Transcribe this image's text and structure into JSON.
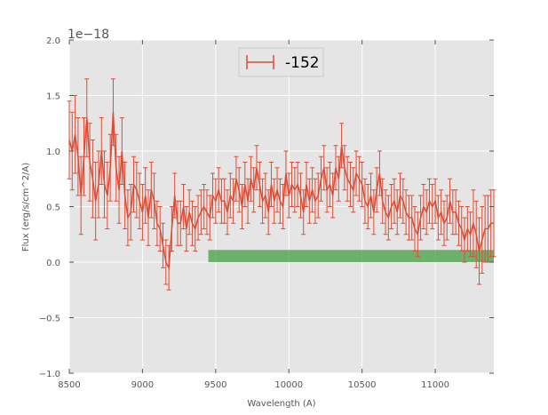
{
  "chart_data": {
    "type": "line",
    "title": "",
    "xlabel": "Wavelength (A)",
    "ylabel": "Flux (erg/s/cm^2/A)",
    "y_offset_label": "1e−18",
    "xlim": [
      8500,
      11400
    ],
    "ylim": [
      -1.0,
      2.0
    ],
    "x_ticks": [
      8500,
      9000,
      9500,
      10000,
      10500,
      11000
    ],
    "x_tick_labels": [
      "8500",
      "9000",
      "9500",
      "10000",
      "10500",
      "11000"
    ],
    "y_ticks": [
      -1.0,
      -0.5,
      0.0,
      0.5,
      1.0,
      1.5,
      2.0
    ],
    "y_tick_labels": [
      "−1.0",
      "−0.5",
      "0.0",
      "0.5",
      "1.0",
      "1.5",
      "2.0"
    ],
    "grid": true,
    "legend_placement": "top-center",
    "colors": {
      "background": "#e5e5e5",
      "grid": "#ffffff",
      "series": "#e24a33",
      "band": "#4fa24f"
    },
    "series": [
      {
        "name": "-152",
        "x": [
          8500,
          8520,
          8540,
          8560,
          8580,
          8600,
          8620,
          8640,
          8660,
          8680,
          8700,
          8720,
          8740,
          8760,
          8780,
          8800,
          8820,
          8840,
          8860,
          8880,
          8900,
          8920,
          8940,
          8960,
          8980,
          9000,
          9020,
          9040,
          9060,
          9080,
          9100,
          9120,
          9140,
          9160,
          9180,
          9200,
          9220,
          9240,
          9260,
          9280,
          9300,
          9320,
          9340,
          9360,
          9380,
          9400,
          9420,
          9440,
          9460,
          9480,
          9500,
          9520,
          9540,
          9560,
          9580,
          9600,
          9620,
          9640,
          9660,
          9680,
          9700,
          9720,
          9740,
          9760,
          9780,
          9800,
          9820,
          9840,
          9860,
          9880,
          9900,
          9920,
          9940,
          9960,
          9980,
          10000,
          10020,
          10040,
          10060,
          10080,
          10100,
          10120,
          10140,
          10160,
          10180,
          10200,
          10220,
          10240,
          10260,
          10280,
          10300,
          10320,
          10340,
          10360,
          10380,
          10400,
          10420,
          10440,
          10460,
          10480,
          10500,
          10520,
          10540,
          10560,
          10580,
          10600,
          10620,
          10640,
          10660,
          10680,
          10700,
          10720,
          10740,
          10760,
          10780,
          10800,
          10820,
          10840,
          10860,
          10880,
          10900,
          10920,
          10940,
          10960,
          10980,
          11000,
          11020,
          11040,
          11060,
          11080,
          11100,
          11120,
          11140,
          11160,
          11180,
          11200,
          11220,
          11240,
          11260,
          11280,
          11300,
          11320,
          11340,
          11360,
          11380,
          11400
        ],
        "y": [
          1.1,
          1.0,
          1.15,
          0.95,
          0.6,
          0.95,
          1.3,
          0.9,
          0.75,
          0.55,
          0.7,
          1.0,
          0.7,
          0.6,
          0.85,
          1.35,
          0.85,
          0.65,
          1.0,
          0.6,
          0.4,
          0.45,
          0.7,
          0.65,
          0.55,
          0.45,
          0.6,
          0.4,
          0.65,
          0.55,
          0.35,
          0.3,
          0.15,
          0.0,
          -0.05,
          0.3,
          0.6,
          0.35,
          0.35,
          0.5,
          0.3,
          0.45,
          0.35,
          0.3,
          0.4,
          0.45,
          0.5,
          0.45,
          0.4,
          0.6,
          0.55,
          0.65,
          0.55,
          0.55,
          0.45,
          0.6,
          0.55,
          0.75,
          0.65,
          0.5,
          0.7,
          0.55,
          0.75,
          0.65,
          0.85,
          0.7,
          0.55,
          0.6,
          0.45,
          0.7,
          0.55,
          0.65,
          0.55,
          0.5,
          0.8,
          0.6,
          0.7,
          0.65,
          0.7,
          0.6,
          0.45,
          0.7,
          0.55,
          0.65,
          0.55,
          0.6,
          0.75,
          0.85,
          0.65,
          0.7,
          0.6,
          0.85,
          0.75,
          1.05,
          0.85,
          0.75,
          0.7,
          0.65,
          0.8,
          0.75,
          0.7,
          0.55,
          0.5,
          0.6,
          0.45,
          0.65,
          0.8,
          0.55,
          0.45,
          0.4,
          0.5,
          0.55,
          0.45,
          0.6,
          0.55,
          0.45,
          0.4,
          0.4,
          0.3,
          0.25,
          0.4,
          0.5,
          0.45,
          0.55,
          0.5,
          0.55,
          0.4,
          0.45,
          0.35,
          0.4,
          0.55,
          0.45,
          0.45,
          0.35,
          0.3,
          0.2,
          0.3,
          0.25,
          0.35,
          0.25,
          0.1,
          0.2,
          0.3,
          0.3,
          0.35,
          0.35
        ],
        "yerr": [
          0.35,
          0.35,
          0.35,
          0.35,
          0.35,
          0.35,
          0.35,
          0.35,
          0.35,
          0.35,
          0.3,
          0.3,
          0.3,
          0.3,
          0.3,
          0.3,
          0.3,
          0.3,
          0.3,
          0.3,
          0.25,
          0.25,
          0.25,
          0.25,
          0.25,
          0.25,
          0.25,
          0.25,
          0.25,
          0.25,
          0.2,
          0.2,
          0.2,
          0.2,
          0.2,
          0.2,
          0.2,
          0.2,
          0.2,
          0.2,
          0.2,
          0.2,
          0.2,
          0.2,
          0.2,
          0.2,
          0.2,
          0.2,
          0.2,
          0.2,
          0.2,
          0.2,
          0.2,
          0.2,
          0.2,
          0.2,
          0.2,
          0.2,
          0.2,
          0.2,
          0.2,
          0.2,
          0.2,
          0.2,
          0.2,
          0.2,
          0.2,
          0.2,
          0.2,
          0.2,
          0.2,
          0.2,
          0.2,
          0.2,
          0.2,
          0.2,
          0.2,
          0.2,
          0.2,
          0.2,
          0.2,
          0.2,
          0.2,
          0.2,
          0.2,
          0.2,
          0.2,
          0.2,
          0.2,
          0.2,
          0.2,
          0.2,
          0.2,
          0.2,
          0.2,
          0.2,
          0.2,
          0.2,
          0.2,
          0.2,
          0.2,
          0.2,
          0.2,
          0.2,
          0.2,
          0.2,
          0.2,
          0.2,
          0.2,
          0.2,
          0.2,
          0.2,
          0.2,
          0.2,
          0.2,
          0.2,
          0.2,
          0.2,
          0.2,
          0.2,
          0.2,
          0.2,
          0.2,
          0.2,
          0.2,
          0.2,
          0.2,
          0.2,
          0.2,
          0.2,
          0.2,
          0.2,
          0.2,
          0.2,
          0.2,
          0.2,
          0.2,
          0.2,
          0.3,
          0.3,
          0.3,
          0.3,
          0.3,
          0.3,
          0.3,
          0.3
        ]
      }
    ],
    "band": {
      "x_start": 9450,
      "x_end": 11400,
      "y_bottom": 0.0,
      "y_top": 0.11
    }
  }
}
